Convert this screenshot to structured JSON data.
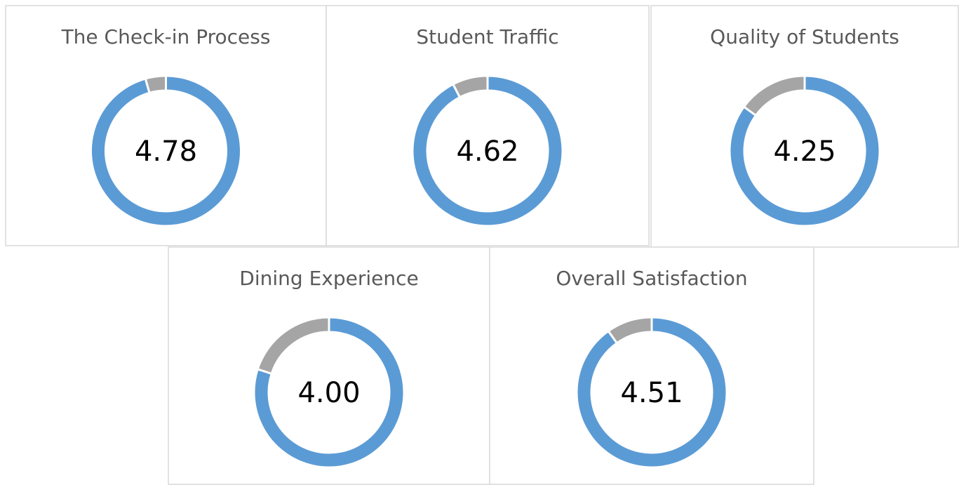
{
  "chart_data": [
    {
      "type": "donut",
      "title": "The Check-in Process",
      "value": 4.78,
      "range": [
        0,
        5
      ],
      "color": "#5b9bd5",
      "rest_color": "#a5a5a5"
    },
    {
      "type": "donut",
      "title": "Student Traffic",
      "value": 4.62,
      "range": [
        0,
        5
      ],
      "color": "#5b9bd5",
      "rest_color": "#a5a5a5"
    },
    {
      "type": "donut",
      "title": "Quality of Students",
      "value": 4.25,
      "range": [
        0,
        5
      ],
      "color": "#5b9bd5",
      "rest_color": "#a5a5a5"
    },
    {
      "type": "donut",
      "title": "Dining Experience",
      "value": 4,
      "value_label": "4.00",
      "range": [
        0,
        5
      ],
      "color": "#5b9bd5",
      "rest_color": "#a5a5a5"
    },
    {
      "type": "donut",
      "title": "Overall Satisfaction",
      "value": 4.51,
      "range": [
        0,
        5
      ],
      "color": "#5b9bd5",
      "rest_color": "#a5a5a5"
    }
  ]
}
